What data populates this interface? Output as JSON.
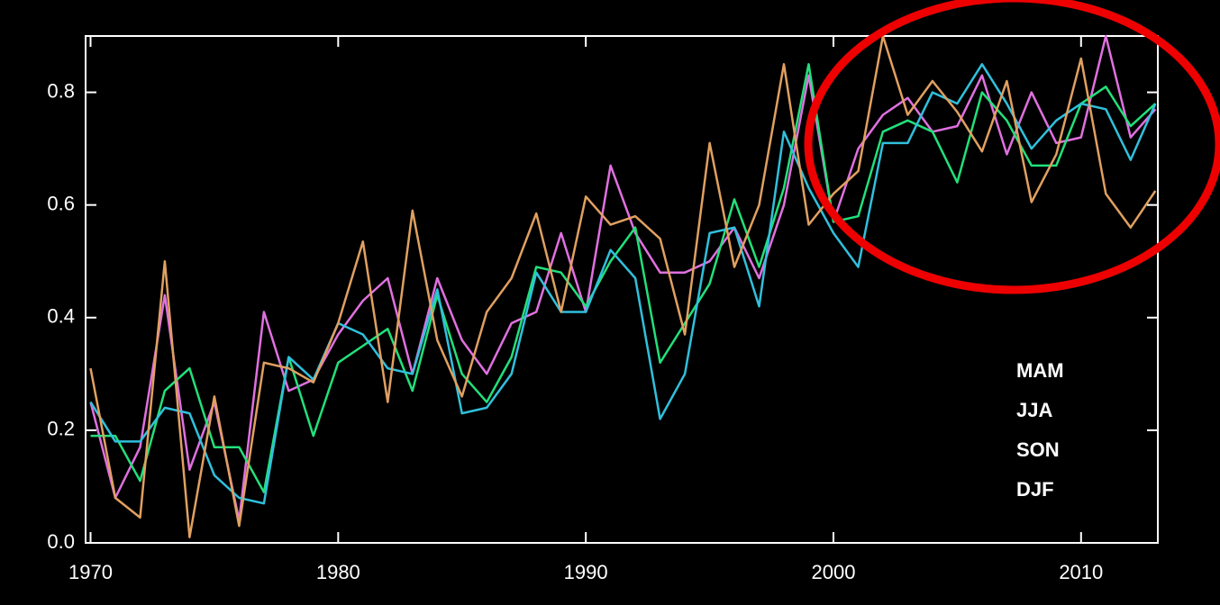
{
  "chart_data": {
    "type": "line",
    "x": [
      1970,
      1971,
      1972,
      1973,
      1974,
      1975,
      1976,
      1977,
      1978,
      1979,
      1980,
      1981,
      1982,
      1983,
      1984,
      1985,
      1986,
      1987,
      1988,
      1989,
      1990,
      1991,
      1992,
      1993,
      1994,
      1995,
      1996,
      1997,
      1998,
      1999,
      2000,
      2001,
      2002,
      2003,
      2004,
      2005,
      2006,
      2007,
      2008,
      2009,
      2010,
      2011,
      2012,
      2013
    ],
    "xlim": [
      1969.8,
      2013.1
    ],
    "xticks": [
      1970,
      1980,
      1990,
      2000,
      2010
    ],
    "ylim": [
      0,
      0.9
    ],
    "yticks": [
      {
        "value": 0,
        "label": "0.0"
      },
      0.2,
      0.4,
      0.6,
      0.8
    ],
    "legend": "lower right",
    "series": [
      {
        "name": "MAM",
        "color": "#e070e0",
        "values": [
          0.25,
          0.08,
          0.17,
          0.44,
          0.13,
          0.25,
          0.04,
          0.41,
          0.27,
          0.29,
          0.37,
          0.43,
          0.47,
          0.3,
          0.47,
          0.36,
          0.3,
          0.39,
          0.41,
          0.55,
          0.41,
          0.67,
          0.55,
          0.48,
          0.48,
          0.5,
          0.56,
          0.47,
          0.6,
          0.83,
          0.57,
          0.7,
          0.76,
          0.79,
          0.73,
          0.74,
          0.83,
          0.69,
          0.8,
          0.71,
          0.72,
          0.9,
          0.72,
          0.77
        ]
      },
      {
        "name": "JJA",
        "color": "#22e07a",
        "values": [
          0.19,
          0.19,
          0.11,
          0.27,
          0.31,
          0.17,
          0.17,
          0.09,
          0.33,
          0.19,
          0.32,
          0.35,
          0.38,
          0.27,
          0.44,
          0.3,
          0.25,
          0.33,
          0.49,
          0.48,
          0.42,
          0.5,
          0.56,
          0.32,
          0.39,
          0.46,
          0.61,
          0.49,
          0.63,
          0.85,
          0.57,
          0.58,
          0.73,
          0.75,
          0.73,
          0.64,
          0.8,
          0.75,
          0.67,
          0.67,
          0.78,
          0.81,
          0.74,
          0.78
        ]
      },
      {
        "name": "SON",
        "color": "#30c0dc",
        "values": [
          0.25,
          0.18,
          0.18,
          0.24,
          0.23,
          0.12,
          0.08,
          0.07,
          0.33,
          0.29,
          0.39,
          0.37,
          0.31,
          0.3,
          0.45,
          0.23,
          0.24,
          0.3,
          0.48,
          0.41,
          0.41,
          0.52,
          0.47,
          0.22,
          0.3,
          0.55,
          0.56,
          0.42,
          0.73,
          0.63,
          0.55,
          0.49,
          0.71,
          0.71,
          0.8,
          0.78,
          0.85,
          0.78,
          0.7,
          0.75,
          0.78,
          0.77,
          0.68,
          0.78
        ]
      },
      {
        "name": "DJF",
        "color": "#e0a060",
        "values": [
          0.31,
          0.08,
          0.045,
          0.5,
          0.01,
          0.26,
          0.03,
          0.32,
          0.31,
          0.285,
          0.39,
          0.535,
          0.25,
          0.59,
          0.36,
          0.26,
          0.41,
          0.47,
          0.585,
          0.41,
          0.615,
          0.565,
          0.58,
          0.54,
          0.37,
          0.71,
          0.49,
          0.6,
          0.85,
          0.565,
          0.62,
          0.66,
          0.9,
          0.76,
          0.82,
          0.765,
          0.695,
          0.82,
          0.605,
          0.69,
          0.86,
          0.62,
          0.56,
          0.625
        ]
      }
    ]
  }
}
